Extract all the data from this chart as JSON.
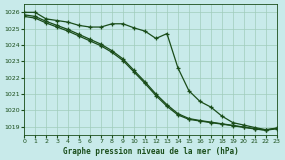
{
  "title": "Graphe pression niveau de la mer (hPa)",
  "bg_color": "#c8eaea",
  "grid_color": "#a0ccbb",
  "line_color": "#1a4d1a",
  "xlim": [
    0,
    23
  ],
  "ylim": [
    1018.5,
    1026.5
  ],
  "yticks": [
    1019,
    1020,
    1021,
    1022,
    1023,
    1024,
    1025,
    1026
  ],
  "xticks": [
    0,
    1,
    2,
    3,
    4,
    5,
    6,
    7,
    8,
    9,
    10,
    11,
    12,
    13,
    14,
    15,
    16,
    17,
    18,
    19,
    20,
    21,
    22,
    23
  ],
  "series1": [
    1026.0,
    1026.0,
    1025.6,
    1025.5,
    1025.4,
    1025.2,
    1025.1,
    1025.1,
    1025.3,
    1025.3,
    1025.05,
    1024.85,
    1024.4,
    1024.7,
    1022.6,
    1021.2,
    1020.55,
    1020.2,
    1019.65,
    1019.25,
    1019.1,
    1018.95,
    1018.82,
    1018.92
  ],
  "series2": [
    1025.85,
    1025.75,
    1025.45,
    1025.2,
    1024.95,
    1024.65,
    1024.35,
    1024.05,
    1023.65,
    1023.15,
    1022.45,
    1021.75,
    1021.0,
    1020.35,
    1019.8,
    1019.5,
    1019.38,
    1019.28,
    1019.18,
    1019.08,
    1018.98,
    1018.88,
    1018.8,
    1018.9
  ],
  "series3": [
    1025.75,
    1025.65,
    1025.35,
    1025.1,
    1024.85,
    1024.55,
    1024.25,
    1023.95,
    1023.55,
    1023.05,
    1022.35,
    1021.65,
    1020.9,
    1020.25,
    1019.72,
    1019.45,
    1019.35,
    1019.25,
    1019.16,
    1019.06,
    1018.96,
    1018.86,
    1018.78,
    1018.88
  ]
}
